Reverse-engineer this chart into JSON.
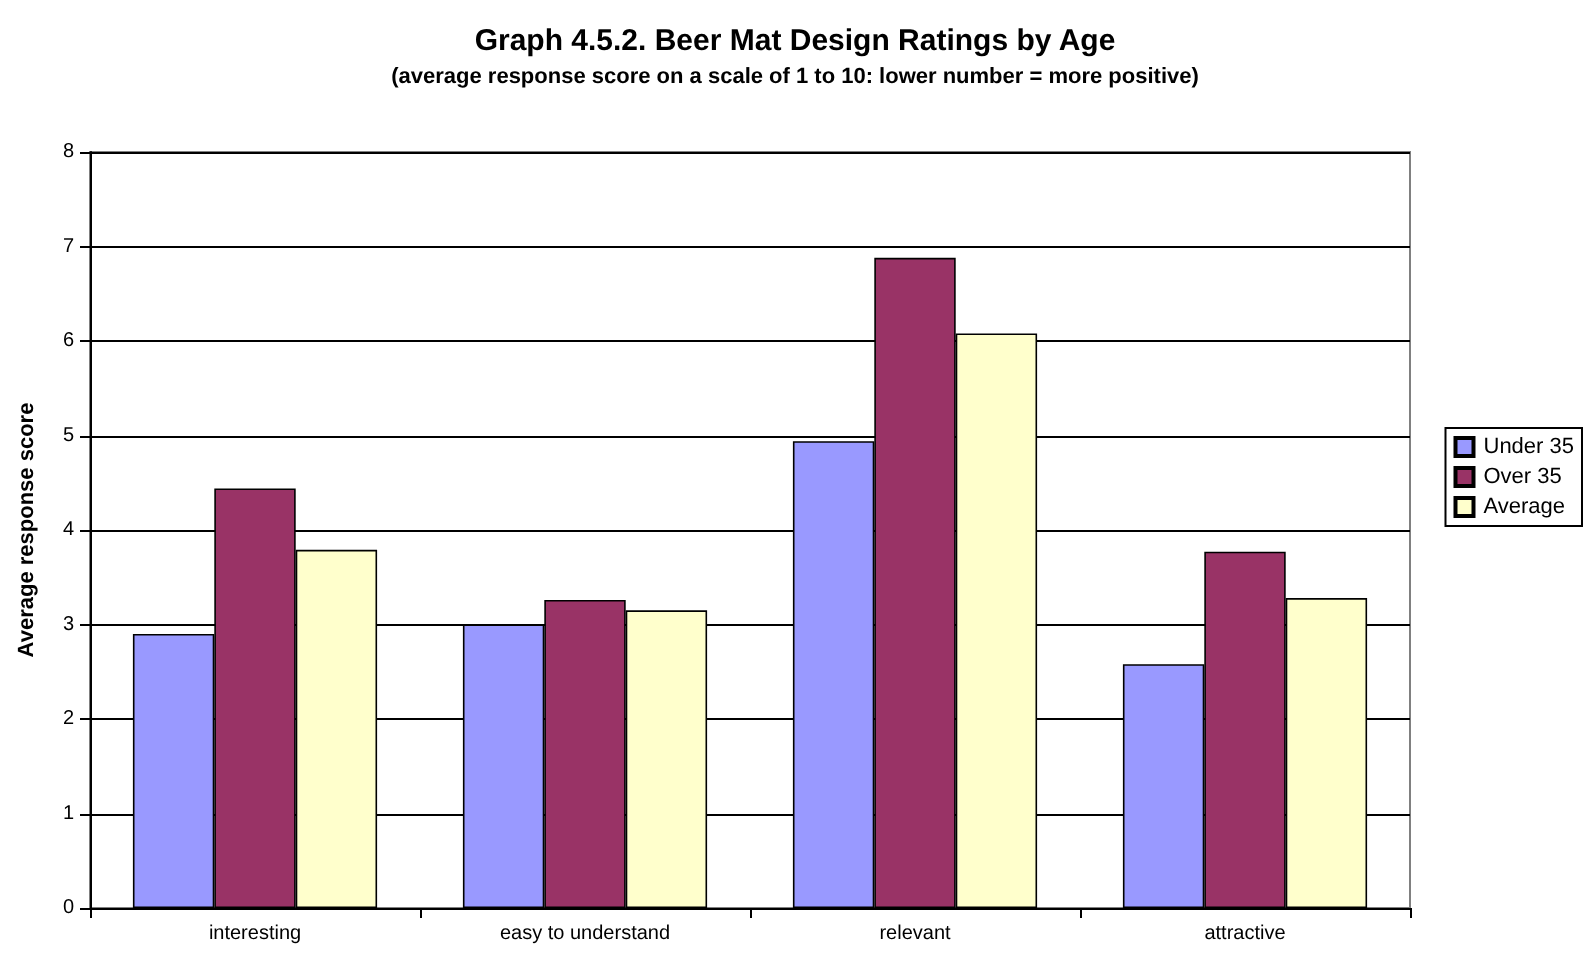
{
  "chart_data": {
    "type": "bar",
    "title": "Graph 4.5.2. Beer Mat Design Ratings by Age",
    "subtitle": "(average response score on a scale of 1 to 10: lower number = more positive)",
    "ylabel": "Average response score",
    "categories": [
      "interesting",
      "easy to understand",
      "relevant",
      "attractive"
    ],
    "series": [
      {
        "name": "Under 35",
        "color": "#9999ff",
        "values": [
          2.9,
          3.0,
          4.94,
          2.58
        ]
      },
      {
        "name": "Over 35",
        "color": "#993366",
        "values": [
          4.44,
          3.26,
          6.88,
          3.77
        ]
      },
      {
        "name": "Average",
        "color": "#ffffcc",
        "values": [
          3.79,
          3.15,
          6.08,
          3.28
        ]
      }
    ],
    "ylim": [
      0,
      8
    ],
    "yticks": [
      0,
      1,
      2,
      3,
      4,
      5,
      6,
      7,
      8
    ],
    "grid": "y",
    "legend": "right"
  }
}
